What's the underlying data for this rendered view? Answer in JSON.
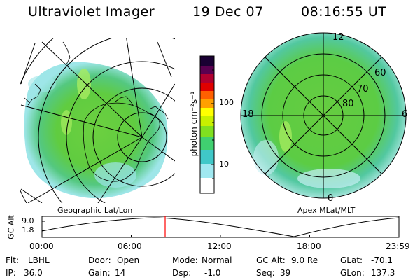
{
  "header": {
    "instrument": "Ultraviolet Imager",
    "date": "19 Dec 07",
    "time": "08:16:55 UT"
  },
  "panels": {
    "left_label": "Geographic Lat/Lon",
    "right_label": "Apex MLat/MLT",
    "polar_mlt_labels": [
      "12",
      "18",
      "6",
      "0"
    ],
    "polar_lat_labels": [
      "60",
      "70",
      "80"
    ]
  },
  "colorbar": {
    "unit_label": "photon cm⁻²s⁻¹",
    "ticks": [
      "100",
      "10"
    ],
    "scale": "log",
    "colors": [
      "#1a0033",
      "#5a0050",
      "#b00030",
      "#e00000",
      "#ff6000",
      "#ffa000",
      "#ffff00",
      "#c8f000",
      "#80e020",
      "#40d070",
      "#40c8c8",
      "#a0e8f0",
      "#ffffff"
    ]
  },
  "altitude_plot": {
    "ylabel": "GC Alt",
    "yticks": [
      "9.0",
      "1.8"
    ],
    "xticks": [
      "00:00",
      "06:00",
      "12:00",
      "18:00",
      "23:59"
    ],
    "current_time_hours": 8.28,
    "marker_color": "#ff0000"
  },
  "status": {
    "row1": [
      {
        "key": "Flt:",
        "value": "LBHL"
      },
      {
        "key": "Door:",
        "value": "Open"
      },
      {
        "key": "Mode:",
        "value": "Normal"
      },
      {
        "key": "GC Alt:",
        "value": "9.0 Re"
      },
      {
        "key": "GLat:",
        "value": "-70.1"
      }
    ],
    "row2": [
      {
        "key": "IP:",
        "value": "36.0"
      },
      {
        "key": "Gain:",
        "value": "14"
      },
      {
        "key": "Dsp:",
        "value": "-1.0"
      },
      {
        "key": "Seq:",
        "value": "39"
      },
      {
        "key": "GLon:",
        "value": "137.3"
      }
    ]
  }
}
